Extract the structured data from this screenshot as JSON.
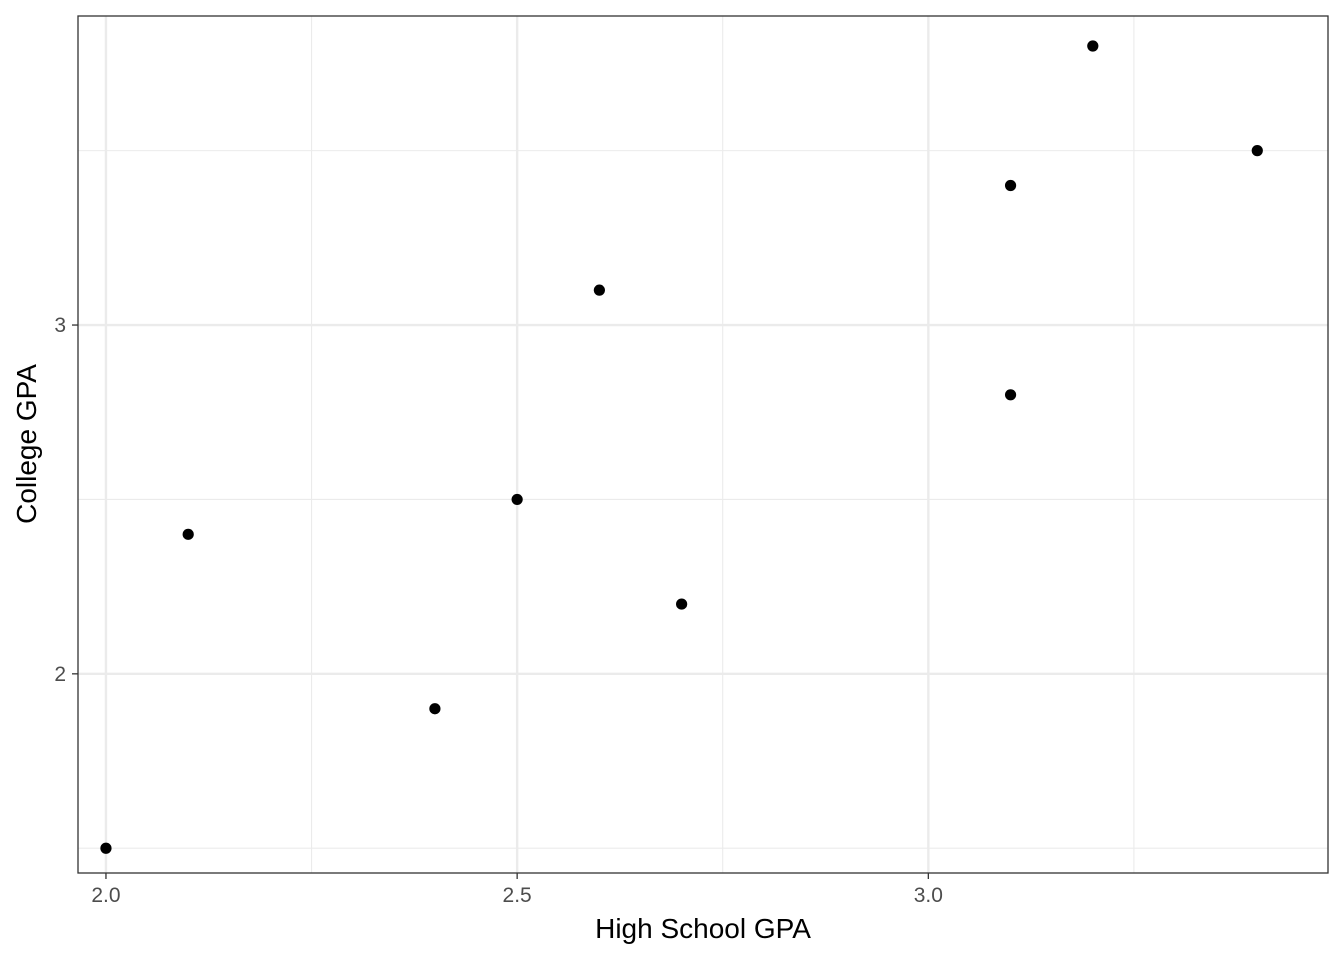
{
  "chart_data": {
    "type": "scatter",
    "title": "",
    "xlabel": "High School GPA",
    "ylabel": "College GPA",
    "xlim": [
      1.966,
      3.486
    ],
    "ylim": [
      1.429,
      3.886
    ],
    "x_ticks": [
      2.0,
      2.5,
      3.0
    ],
    "x_tick_labels": [
      "2.0",
      "2.5",
      "3.0"
    ],
    "y_ticks": [
      2,
      3
    ],
    "y_tick_labels": [
      "2",
      "3"
    ],
    "x_minor_ticks": [
      2.25,
      2.75,
      3.25
    ],
    "y_minor_ticks": [
      1.5,
      2.5,
      3.5
    ],
    "grid": true,
    "legend": "none",
    "point_color": "#000000",
    "grid_color": "#ebebeb",
    "points": [
      {
        "x": 2.0,
        "y": 1.5
      },
      {
        "x": 2.1,
        "y": 2.4
      },
      {
        "x": 2.4,
        "y": 1.9
      },
      {
        "x": 2.5,
        "y": 2.5
      },
      {
        "x": 2.6,
        "y": 3.1
      },
      {
        "x": 2.7,
        "y": 2.2
      },
      {
        "x": 3.1,
        "y": 3.4
      },
      {
        "x": 3.1,
        "y": 2.8
      },
      {
        "x": 3.2,
        "y": 3.8
      },
      {
        "x": 3.4,
        "y": 3.5
      }
    ]
  }
}
